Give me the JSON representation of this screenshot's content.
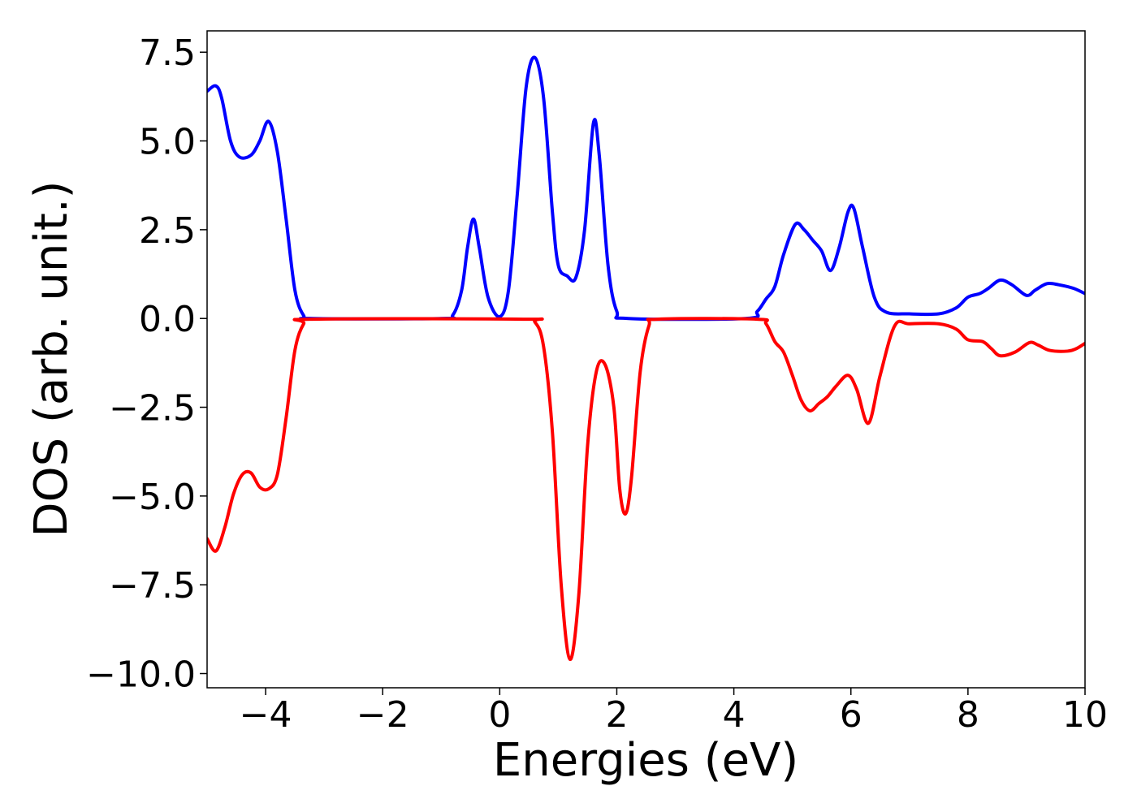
{
  "chart_data": {
    "type": "line",
    "title": "",
    "xlabel": "Energies (eV)",
    "ylabel": "DOS (arb. unit.)",
    "xlim": [
      -5,
      10
    ],
    "ylim": [
      -10.4,
      8.1
    ],
    "grid": false,
    "legend": "none",
    "x_ticks": [
      -4,
      -2,
      0,
      2,
      4,
      6,
      8,
      10
    ],
    "x_tick_labels": [
      "−4",
      "−2",
      "0",
      "2",
      "4",
      "6",
      "8",
      "10"
    ],
    "y_ticks": [
      -10.0,
      -7.5,
      -5.0,
      -2.5,
      0.0,
      2.5,
      5.0,
      7.5
    ],
    "y_tick_labels": [
      "−10.0",
      "−7.5",
      "−5.0",
      "−2.5",
      "0.0",
      "2.5",
      "5.0",
      "7.5"
    ],
    "series": [
      {
        "color": "#0000ff",
        "points": [
          [
            -5.0,
            6.4
          ],
          [
            -4.85,
            6.55
          ],
          [
            -4.75,
            6.2
          ],
          [
            -4.6,
            5.0
          ],
          [
            -4.45,
            4.55
          ],
          [
            -4.25,
            4.6
          ],
          [
            -4.1,
            5.0
          ],
          [
            -3.95,
            5.55
          ],
          [
            -3.8,
            4.7
          ],
          [
            -3.65,
            2.8
          ],
          [
            -3.5,
            0.8
          ],
          [
            -3.35,
            0.08
          ],
          [
            -3.2,
            0.0
          ],
          [
            -1.0,
            0.0
          ],
          [
            -0.8,
            0.1
          ],
          [
            -0.65,
            0.8
          ],
          [
            -0.55,
            2.0
          ],
          [
            -0.45,
            2.8
          ],
          [
            -0.35,
            2.0
          ],
          [
            -0.2,
            0.6
          ],
          [
            0.0,
            0.05
          ],
          [
            0.15,
            0.8
          ],
          [
            0.3,
            3.5
          ],
          [
            0.45,
            6.5
          ],
          [
            0.6,
            7.35
          ],
          [
            0.75,
            6.2
          ],
          [
            0.9,
            3.0
          ],
          [
            1.0,
            1.5
          ],
          [
            1.15,
            1.2
          ],
          [
            1.3,
            1.15
          ],
          [
            1.45,
            2.5
          ],
          [
            1.6,
            5.5
          ],
          [
            1.7,
            4.6
          ],
          [
            1.85,
            1.5
          ],
          [
            2.0,
            0.2
          ],
          [
            2.2,
            0.0
          ],
          [
            4.2,
            0.0
          ],
          [
            4.4,
            0.2
          ],
          [
            4.55,
            0.55
          ],
          [
            4.7,
            0.9
          ],
          [
            4.85,
            1.8
          ],
          [
            5.05,
            2.65
          ],
          [
            5.2,
            2.5
          ],
          [
            5.35,
            2.2
          ],
          [
            5.5,
            1.9
          ],
          [
            5.65,
            1.35
          ],
          [
            5.8,
            2.0
          ],
          [
            5.95,
            3.0
          ],
          [
            6.05,
            3.1
          ],
          [
            6.2,
            2.0
          ],
          [
            6.4,
            0.6
          ],
          [
            6.6,
            0.18
          ],
          [
            7.0,
            0.13
          ],
          [
            7.5,
            0.13
          ],
          [
            7.8,
            0.3
          ],
          [
            8.0,
            0.6
          ],
          [
            8.2,
            0.7
          ],
          [
            8.35,
            0.85
          ],
          [
            8.55,
            1.08
          ],
          [
            8.75,
            0.95
          ],
          [
            9.0,
            0.65
          ],
          [
            9.15,
            0.8
          ],
          [
            9.35,
            0.98
          ],
          [
            9.55,
            0.95
          ],
          [
            9.8,
            0.85
          ],
          [
            10.0,
            0.7
          ]
        ]
      },
      {
        "color": "#ff0000",
        "points": [
          [
            -5.0,
            -6.2
          ],
          [
            -4.85,
            -6.55
          ],
          [
            -4.7,
            -5.9
          ],
          [
            -4.55,
            -4.95
          ],
          [
            -4.4,
            -4.4
          ],
          [
            -4.25,
            -4.35
          ],
          [
            -4.1,
            -4.75
          ],
          [
            -3.95,
            -4.8
          ],
          [
            -3.8,
            -4.4
          ],
          [
            -3.65,
            -2.8
          ],
          [
            -3.5,
            -0.9
          ],
          [
            -3.35,
            -0.15
          ],
          [
            -3.2,
            -0.02
          ],
          [
            0.4,
            -0.02
          ],
          [
            0.6,
            -0.1
          ],
          [
            0.75,
            -0.8
          ],
          [
            0.9,
            -3.2
          ],
          [
            1.05,
            -7.5
          ],
          [
            1.2,
            -9.6
          ],
          [
            1.35,
            -7.8
          ],
          [
            1.5,
            -3.6
          ],
          [
            1.65,
            -1.5
          ],
          [
            1.8,
            -1.3
          ],
          [
            1.95,
            -2.5
          ],
          [
            2.05,
            -4.8
          ],
          [
            2.15,
            -5.5
          ],
          [
            2.25,
            -4.5
          ],
          [
            2.4,
            -1.5
          ],
          [
            2.55,
            -0.2
          ],
          [
            2.7,
            -0.02
          ],
          [
            4.4,
            -0.02
          ],
          [
            4.55,
            -0.15
          ],
          [
            4.7,
            -0.65
          ],
          [
            4.85,
            -0.95
          ],
          [
            5.0,
            -1.6
          ],
          [
            5.15,
            -2.3
          ],
          [
            5.3,
            -2.6
          ],
          [
            5.45,
            -2.4
          ],
          [
            5.6,
            -2.2
          ],
          [
            5.75,
            -1.9
          ],
          [
            5.95,
            -1.6
          ],
          [
            6.1,
            -2.0
          ],
          [
            6.3,
            -2.95
          ],
          [
            6.5,
            -1.6
          ],
          [
            6.75,
            -0.2
          ],
          [
            7.0,
            -0.15
          ],
          [
            7.5,
            -0.15
          ],
          [
            7.8,
            -0.3
          ],
          [
            8.0,
            -0.6
          ],
          [
            8.25,
            -0.65
          ],
          [
            8.4,
            -0.85
          ],
          [
            8.55,
            -1.05
          ],
          [
            8.8,
            -0.95
          ],
          [
            9.05,
            -0.68
          ],
          [
            9.2,
            -0.75
          ],
          [
            9.4,
            -0.9
          ],
          [
            9.7,
            -0.92
          ],
          [
            9.85,
            -0.85
          ],
          [
            10.0,
            -0.7
          ]
        ]
      }
    ]
  }
}
